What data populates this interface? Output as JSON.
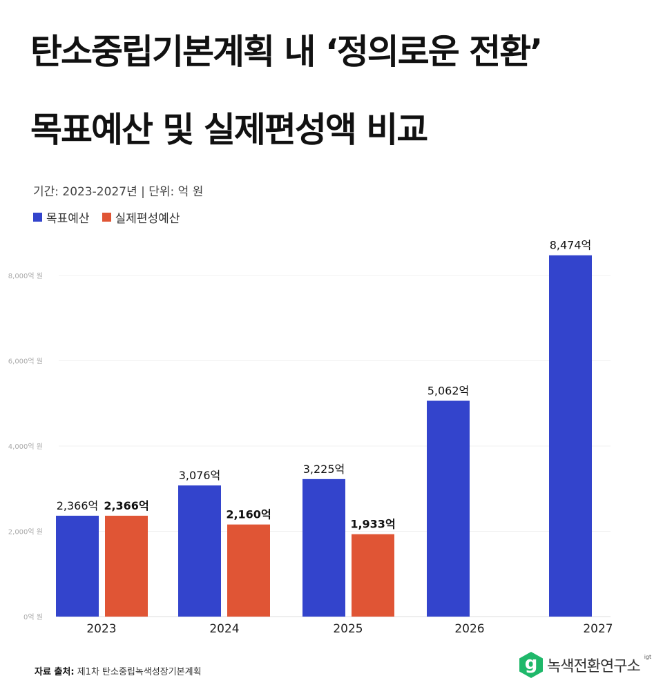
{
  "title_line1": "탄소중립기본계획 내 ‘정의로운 전환’",
  "title_line2": "목표예산 및 실제편성액 비교",
  "subtitle": "기간: 2023-2027년 | 단위: 억 원",
  "source_label": "자료 출처:",
  "source_text": "제1차 탄소중립녹색성장기본계획",
  "logo": {
    "mark": "g",
    "name": "녹색전환연구소",
    "sup": "igt"
  },
  "chart_data": {
    "type": "bar",
    "title": "",
    "xlabel": "",
    "ylabel": "",
    "ylim": [
      0,
      8000
    ],
    "grid": true,
    "legend_placement": "top-left",
    "categories": [
      "2023",
      "2024",
      "2025",
      "2026",
      "2027"
    ],
    "yticks": [
      0,
      2000,
      4000,
      6000,
      8000
    ],
    "ytick_labels": [
      "0억 원",
      "2,000억 원",
      "4,000억 원",
      "6,000억 원",
      "8,000억 원"
    ],
    "series": [
      {
        "name": "목표예산",
        "color": "#3344cc",
        "values": [
          2366,
          3076,
          3225,
          5062,
          8474
        ],
        "labels": [
          "2,366억",
          "3,076억",
          "3,225억",
          "5,062억",
          "8,474억"
        ],
        "bold_labels": false
      },
      {
        "name": "실제편성예산",
        "color": "#e05535",
        "values": [
          2366,
          2160,
          1933,
          null,
          null
        ],
        "labels": [
          "2,366억",
          "2,160억",
          "1,933억",
          null,
          null
        ],
        "bold_labels": true
      }
    ]
  }
}
